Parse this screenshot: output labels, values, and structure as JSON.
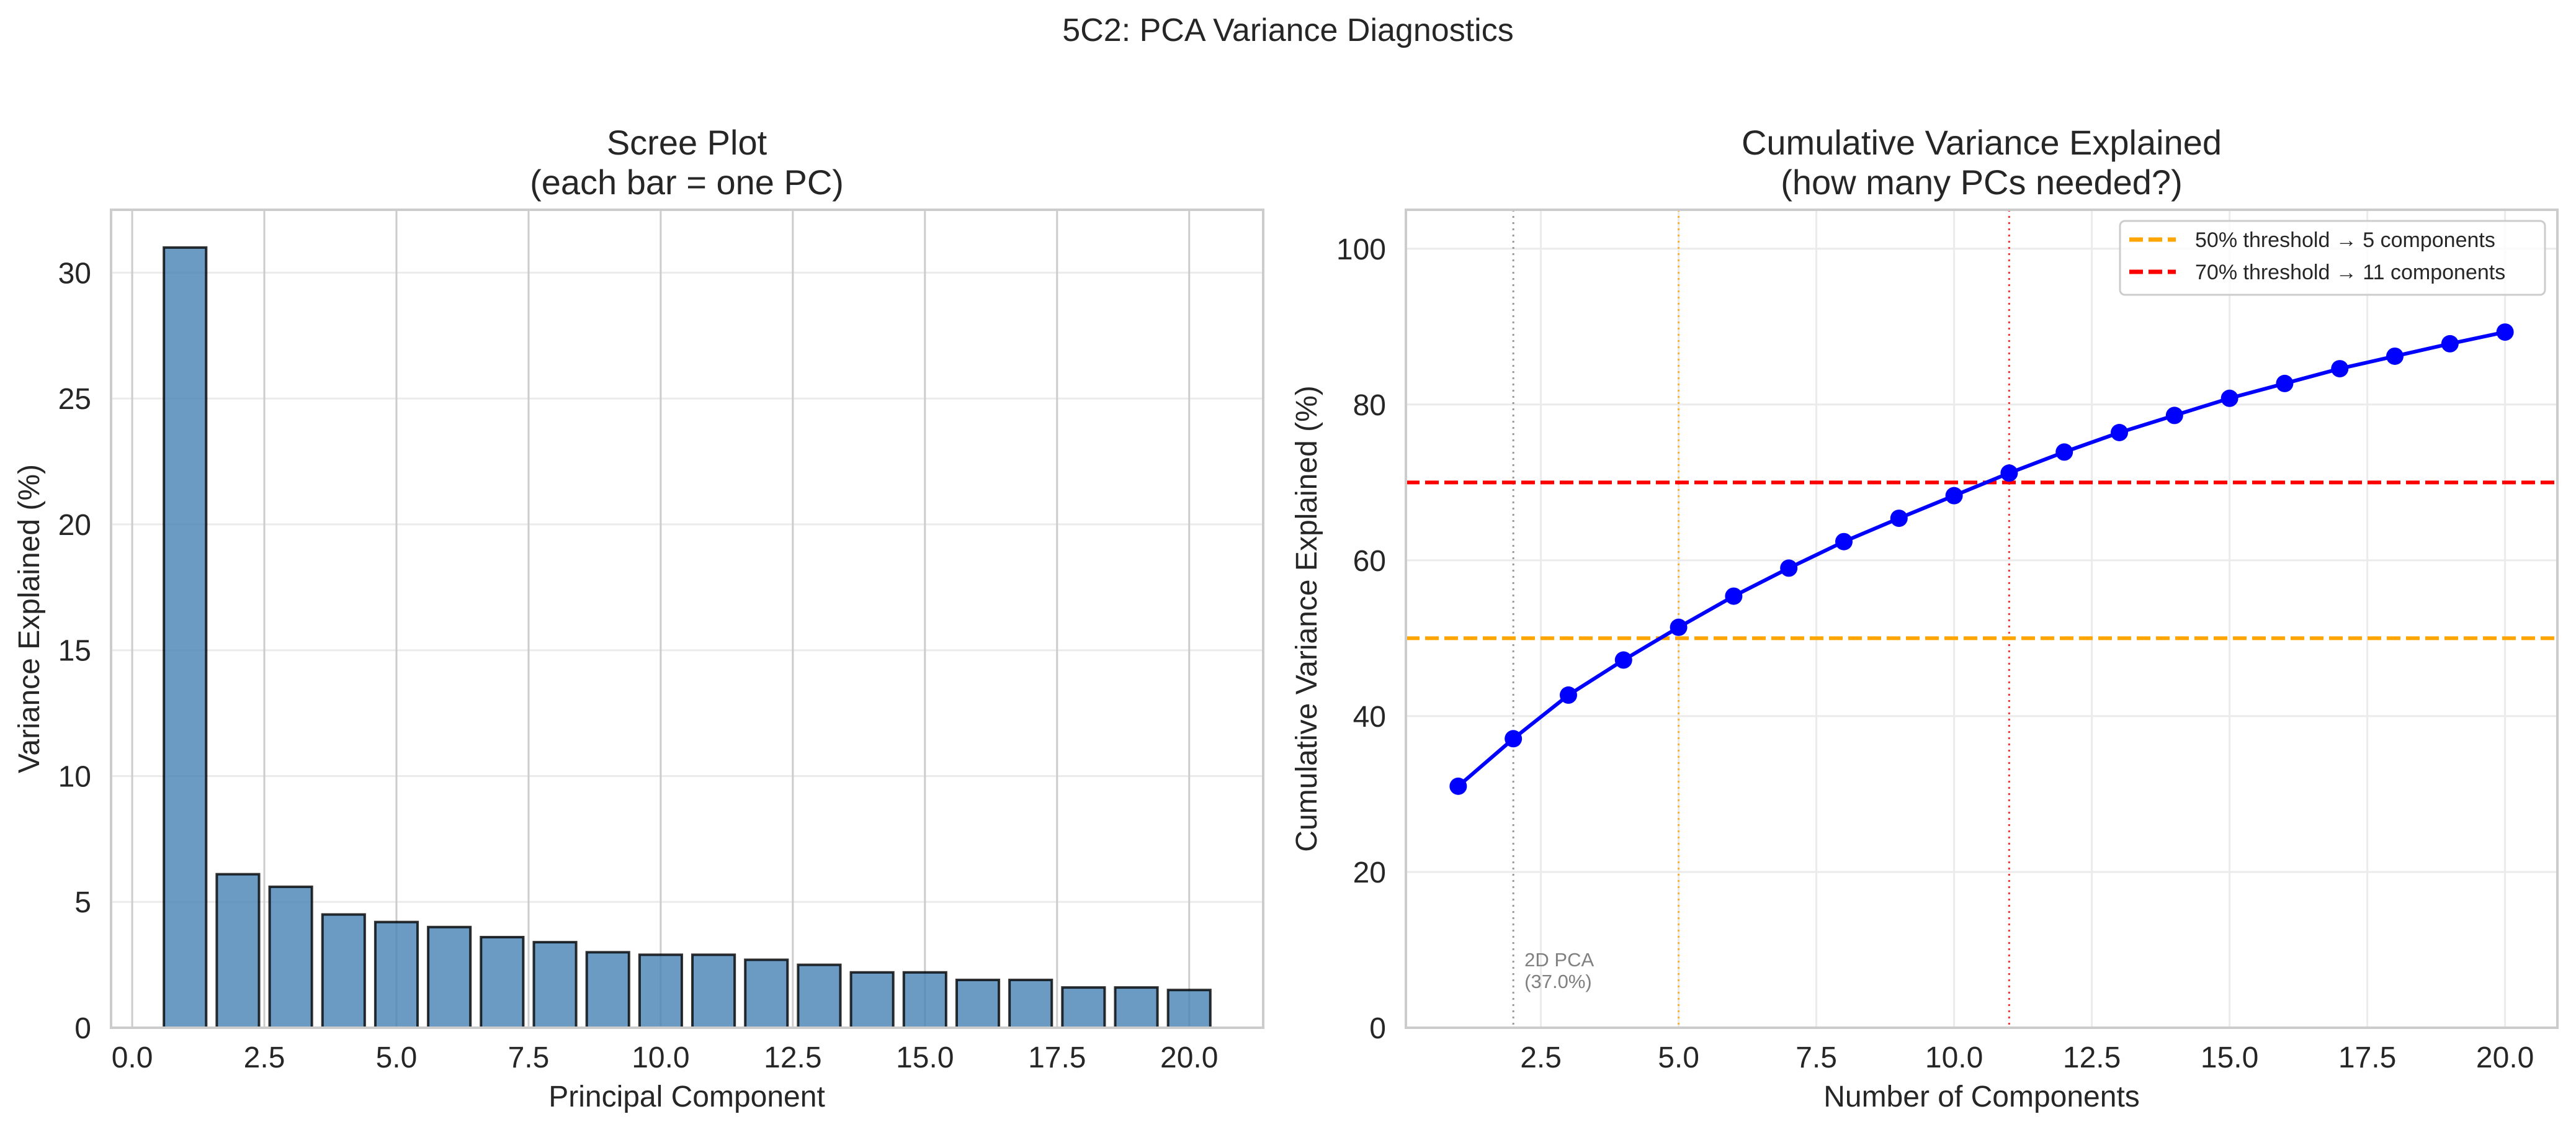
{
  "figure": {
    "suptitle": "5C2: PCA Variance Diagnostics"
  },
  "colors": {
    "bar_fill": "#4682b4",
    "bar_edge": "#000000",
    "line": "#0000ff",
    "threshold_50": "#ffa500",
    "threshold_70": "#ff0000",
    "pca2d_line": "#808080",
    "grid": "#ebebeb",
    "spine": "#cccccc",
    "text": "#262626"
  },
  "chart_data": [
    {
      "type": "bar",
      "title_line1": "Scree Plot",
      "title_line2": "(each bar = one PC)",
      "xlabel": "Principal Component",
      "ylabel": "Variance Explained (%)",
      "x": [
        1,
        2,
        3,
        4,
        5,
        6,
        7,
        8,
        9,
        10,
        11,
        12,
        13,
        14,
        15,
        16,
        17,
        18,
        19,
        20
      ],
      "values": [
        31.0,
        6.1,
        5.6,
        4.5,
        4.2,
        4.0,
        3.6,
        3.4,
        3.0,
        2.9,
        2.9,
        2.7,
        2.5,
        2.2,
        2.2,
        1.9,
        1.9,
        1.6,
        1.6,
        1.5
      ],
      "xlim": [
        -0.4,
        21.4
      ],
      "ylim": [
        0,
        32.5
      ],
      "xticks": [
        0.0,
        2.5,
        5.0,
        7.5,
        10.0,
        12.5,
        15.0,
        17.5,
        20.0
      ],
      "xtick_labels": [
        "0.0",
        "2.5",
        "5.0",
        "7.5",
        "10.0",
        "12.5",
        "15.0",
        "17.5",
        "20.0"
      ],
      "yticks": [
        0,
        5,
        10,
        15,
        20,
        25,
        30
      ],
      "ytick_labels": [
        "0",
        "5",
        "10",
        "15",
        "20",
        "25",
        "30"
      ],
      "grid": true
    },
    {
      "type": "line",
      "title_line1": "Cumulative Variance Explained",
      "title_line2": "(how many PCs needed?)",
      "xlabel": "Number of Components",
      "ylabel": "Cumulative Variance Explained (%)",
      "x": [
        1,
        2,
        3,
        4,
        5,
        6,
        7,
        8,
        9,
        10,
        11,
        12,
        13,
        14,
        15,
        16,
        17,
        18,
        19,
        20
      ],
      "values": [
        31.0,
        37.1,
        42.7,
        47.2,
        51.4,
        55.4,
        59.0,
        62.4,
        65.4,
        68.3,
        71.2,
        73.9,
        76.4,
        78.6,
        80.8,
        82.7,
        84.6,
        86.2,
        87.8,
        89.3
      ],
      "xlim": [
        0.05,
        20.95
      ],
      "ylim": [
        0,
        105
      ],
      "xticks": [
        2.5,
        5.0,
        7.5,
        10.0,
        12.5,
        15.0,
        17.5,
        20.0
      ],
      "xtick_labels": [
        "2.5",
        "5.0",
        "7.5",
        "10.0",
        "12.5",
        "15.0",
        "17.5",
        "20.0"
      ],
      "yticks": [
        0,
        20,
        40,
        60,
        80,
        100
      ],
      "ytick_labels": [
        "0",
        "20",
        "40",
        "60",
        "80",
        "100"
      ],
      "grid": true,
      "hlines": [
        {
          "y": 50,
          "color": "#ffa500",
          "label": "50% threshold → 5 components"
        },
        {
          "y": 70,
          "color": "#ff0000",
          "label": "70% threshold → 11 components"
        }
      ],
      "vlines": [
        {
          "x": 2,
          "color": "#808080"
        },
        {
          "x": 5,
          "color": "#ffa500"
        },
        {
          "x": 11,
          "color": "#ff0000"
        }
      ],
      "annotation": {
        "x": 2,
        "y": 5,
        "line1": "2D PCA",
        "line2": "(37.0%)"
      },
      "legend_position": "top-right"
    }
  ]
}
